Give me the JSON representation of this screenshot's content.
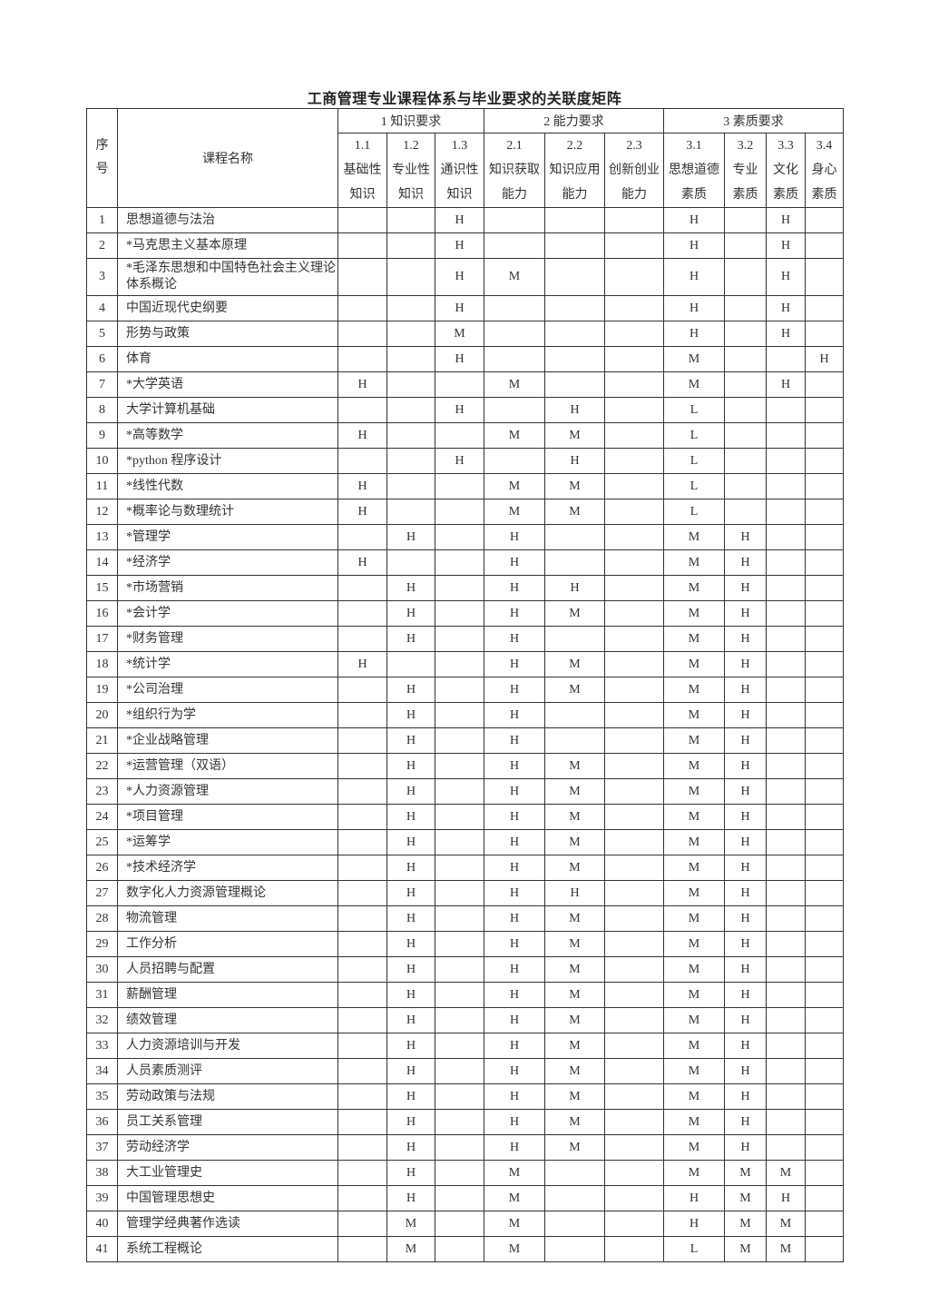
{
  "title": "工商管理专业课程体系与毕业要求的关联度矩阵",
  "header": {
    "seq": "序号",
    "course": "课程名称",
    "groups": [
      "1 知识要求",
      "2 能力要求",
      "3 素质要求"
    ],
    "columns": [
      {
        "code": "1.1",
        "label": "基础性知识"
      },
      {
        "code": "1.2",
        "label": "专业性知识"
      },
      {
        "code": "1.3",
        "label": "通识性知识"
      },
      {
        "code": "2.1",
        "label": "知识获取能力"
      },
      {
        "code": "2.2",
        "label": "知识应用能力"
      },
      {
        "code": "2.3",
        "label": "创新创业能力"
      },
      {
        "code": "3.1",
        "label": "思想道德素质"
      },
      {
        "code": "3.2",
        "label": "专业素质"
      },
      {
        "code": "3.3",
        "label": "文化素质"
      },
      {
        "code": "3.4",
        "label": "身心素质"
      }
    ]
  },
  "rows": [
    {
      "seq": "1",
      "name": "思想道德与法治",
      "v": [
        "",
        "",
        "H",
        "",
        "",
        "",
        "H",
        "",
        "H",
        ""
      ]
    },
    {
      "seq": "2",
      "name": "*马克思主义基本原理",
      "v": [
        "",
        "",
        "H",
        "",
        "",
        "",
        "H",
        "",
        "H",
        ""
      ]
    },
    {
      "seq": "3",
      "name": "*毛泽东思想和中国特色社会主义理论体系概论",
      "v": [
        "",
        "",
        "H",
        "M",
        "",
        "",
        "H",
        "",
        "H",
        ""
      ]
    },
    {
      "seq": "4",
      "name": "中国近现代史纲要",
      "v": [
        "",
        "",
        "H",
        "",
        "",
        "",
        "H",
        "",
        "H",
        ""
      ]
    },
    {
      "seq": "5",
      "name": "形势与政策",
      "v": [
        "",
        "",
        "M",
        "",
        "",
        "",
        "H",
        "",
        "H",
        ""
      ]
    },
    {
      "seq": "6",
      "name": "体育",
      "v": [
        "",
        "",
        "H",
        "",
        "",
        "",
        "M",
        "",
        "",
        "H"
      ]
    },
    {
      "seq": "7",
      "name": "*大学英语",
      "v": [
        "H",
        "",
        "",
        "M",
        "",
        "",
        "M",
        "",
        "H",
        ""
      ]
    },
    {
      "seq": "8",
      "name": "大学计算机基础",
      "v": [
        "",
        "",
        "H",
        "",
        "H",
        "",
        "L",
        "",
        "",
        ""
      ]
    },
    {
      "seq": "9",
      "name": "*高等数学",
      "v": [
        "H",
        "",
        "",
        "M",
        "M",
        "",
        "L",
        "",
        "",
        ""
      ]
    },
    {
      "seq": "10",
      "name": "*python 程序设计",
      "v": [
        "",
        "",
        "H",
        "",
        "H",
        "",
        "L",
        "",
        "",
        ""
      ]
    },
    {
      "seq": "11",
      "name": "*线性代数",
      "v": [
        "H",
        "",
        "",
        "M",
        "M",
        "",
        "L",
        "",
        "",
        ""
      ]
    },
    {
      "seq": "12",
      "name": "*概率论与数理统计",
      "v": [
        "H",
        "",
        "",
        "M",
        "M",
        "",
        "L",
        "",
        "",
        ""
      ]
    },
    {
      "seq": "13",
      "name": "*管理学",
      "v": [
        "",
        "H",
        "",
        "H",
        "",
        "",
        "M",
        "H",
        "",
        ""
      ]
    },
    {
      "seq": "14",
      "name": "*经济学",
      "v": [
        "H",
        "",
        "",
        "H",
        "",
        "",
        "M",
        "H",
        "",
        ""
      ]
    },
    {
      "seq": "15",
      "name": "*市场营销",
      "v": [
        "",
        "H",
        "",
        "H",
        "H",
        "",
        "M",
        "H",
        "",
        ""
      ]
    },
    {
      "seq": "16",
      "name": "*会计学",
      "v": [
        "",
        "H",
        "",
        "H",
        "M",
        "",
        "M",
        "H",
        "",
        ""
      ]
    },
    {
      "seq": "17",
      "name": "*财务管理",
      "v": [
        "",
        "H",
        "",
        "H",
        "",
        "",
        "M",
        "H",
        "",
        ""
      ]
    },
    {
      "seq": "18",
      "name": "*统计学",
      "v": [
        "H",
        "",
        "",
        "H",
        "M",
        "",
        "M",
        "H",
        "",
        ""
      ]
    },
    {
      "seq": "19",
      "name": "*公司治理",
      "v": [
        "",
        "H",
        "",
        "H",
        "M",
        "",
        "M",
        "H",
        "",
        ""
      ]
    },
    {
      "seq": "20",
      "name": "*组织行为学",
      "v": [
        "",
        "H",
        "",
        "H",
        "",
        "",
        "M",
        "H",
        "",
        ""
      ]
    },
    {
      "seq": "21",
      "name": "*企业战略管理",
      "v": [
        "",
        "H",
        "",
        "H",
        "",
        "",
        "M",
        "H",
        "",
        ""
      ]
    },
    {
      "seq": "22",
      "name": "*运营管理（双语）",
      "v": [
        "",
        "H",
        "",
        "H",
        "M",
        "",
        "M",
        "H",
        "",
        ""
      ]
    },
    {
      "seq": "23",
      "name": "*人力资源管理",
      "v": [
        "",
        "H",
        "",
        "H",
        "M",
        "",
        "M",
        "H",
        "",
        ""
      ]
    },
    {
      "seq": "24",
      "name": "*项目管理",
      "v": [
        "",
        "H",
        "",
        "H",
        "M",
        "",
        "M",
        "H",
        "",
        ""
      ]
    },
    {
      "seq": "25",
      "name": "*运筹学",
      "v": [
        "",
        "H",
        "",
        "H",
        "M",
        "",
        "M",
        "H",
        "",
        ""
      ]
    },
    {
      "seq": "26",
      "name": "*技术经济学",
      "v": [
        "",
        "H",
        "",
        "H",
        "M",
        "",
        "M",
        "H",
        "",
        ""
      ]
    },
    {
      "seq": "27",
      "name": "数字化人力资源管理概论",
      "v": [
        "",
        "H",
        "",
        "H",
        "H",
        "",
        "M",
        "H",
        "",
        ""
      ]
    },
    {
      "seq": "28",
      "name": "物流管理",
      "v": [
        "",
        "H",
        "",
        "H",
        "M",
        "",
        "M",
        "H",
        "",
        ""
      ]
    },
    {
      "seq": "29",
      "name": "工作分析",
      "v": [
        "",
        "H",
        "",
        "H",
        "M",
        "",
        "M",
        "H",
        "",
        ""
      ]
    },
    {
      "seq": "30",
      "name": "人员招聘与配置",
      "v": [
        "",
        "H",
        "",
        "H",
        "M",
        "",
        "M",
        "H",
        "",
        ""
      ]
    },
    {
      "seq": "31",
      "name": "薪酬管理",
      "v": [
        "",
        "H",
        "",
        "H",
        "M",
        "",
        "M",
        "H",
        "",
        ""
      ]
    },
    {
      "seq": "32",
      "name": "绩效管理",
      "v": [
        "",
        "H",
        "",
        "H",
        "M",
        "",
        "M",
        "H",
        "",
        ""
      ]
    },
    {
      "seq": "33",
      "name": "人力资源培训与开发",
      "v": [
        "",
        "H",
        "",
        "H",
        "M",
        "",
        "M",
        "H",
        "",
        ""
      ]
    },
    {
      "seq": "34",
      "name": "人员素质测评",
      "v": [
        "",
        "H",
        "",
        "H",
        "M",
        "",
        "M",
        "H",
        "",
        ""
      ]
    },
    {
      "seq": "35",
      "name": "劳动政策与法规",
      "v": [
        "",
        "H",
        "",
        "H",
        "M",
        "",
        "M",
        "H",
        "",
        ""
      ]
    },
    {
      "seq": "36",
      "name": "员工关系管理",
      "v": [
        "",
        "H",
        "",
        "H",
        "M",
        "",
        "M",
        "H",
        "",
        ""
      ]
    },
    {
      "seq": "37",
      "name": "劳动经济学",
      "v": [
        "",
        "H",
        "",
        "H",
        "M",
        "",
        "M",
        "H",
        "",
        ""
      ]
    },
    {
      "seq": "38",
      "name": "大工业管理史",
      "v": [
        "",
        "H",
        "",
        "M",
        "",
        "",
        "M",
        "M",
        "M",
        ""
      ]
    },
    {
      "seq": "39",
      "name": "中国管理思想史",
      "v": [
        "",
        "H",
        "",
        "M",
        "",
        "",
        "H",
        "M",
        "H",
        ""
      ]
    },
    {
      "seq": "40",
      "name": "管理学经典著作选读",
      "v": [
        "",
        "M",
        "",
        "M",
        "",
        "",
        "H",
        "M",
        "M",
        ""
      ]
    },
    {
      "seq": "41",
      "name": "系统工程概论",
      "v": [
        "",
        "M",
        "",
        "M",
        "",
        "",
        "L",
        "M",
        "M",
        ""
      ]
    }
  ]
}
